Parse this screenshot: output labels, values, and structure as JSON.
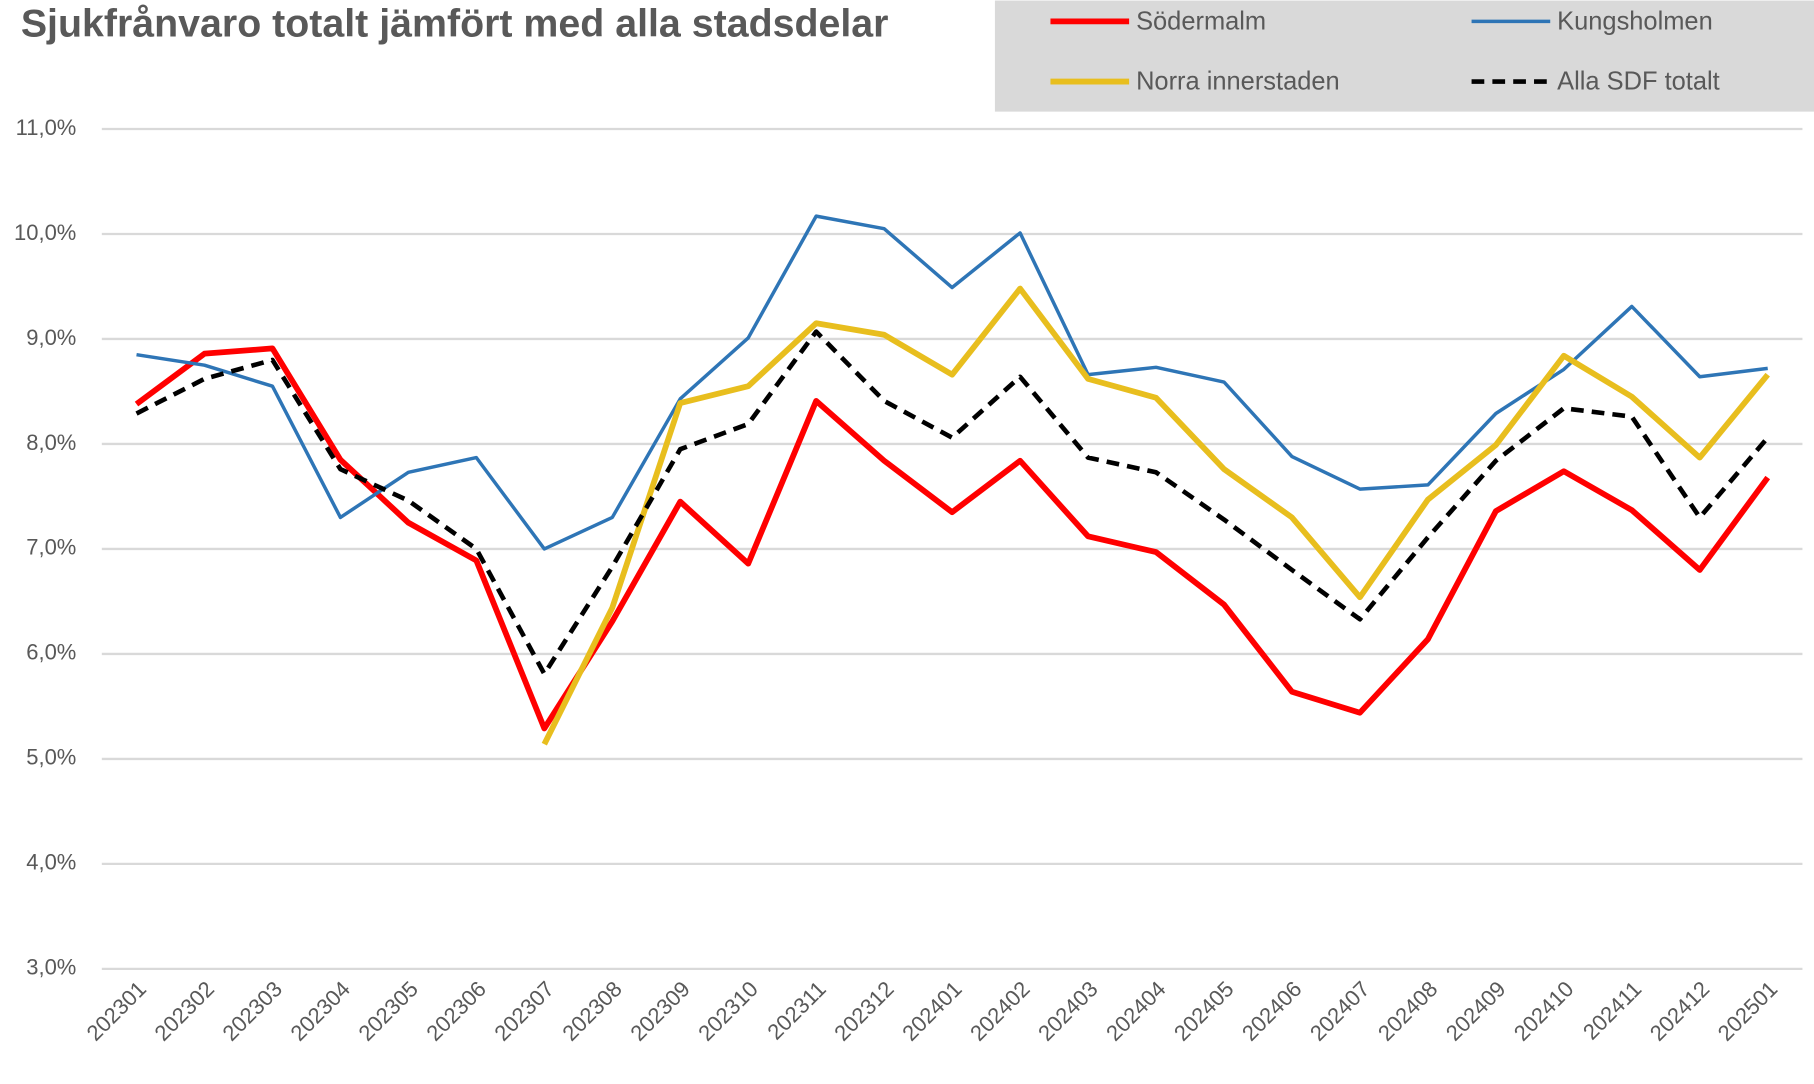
{
  "chart_data": {
    "type": "line",
    "title": "Sjukfrånvaro totalt jämfört med alla stadsdelar",
    "categories": [
      "202301",
      "202302",
      "202303",
      "202304",
      "202305",
      "202306",
      "202307",
      "202308",
      "202309",
      "202310",
      "202311",
      "202312",
      "202401",
      "202402",
      "202403",
      "202404",
      "202405",
      "202406",
      "202407",
      "202408",
      "202409",
      "202410",
      "202411",
      "202412",
      "202501"
    ],
    "series": [
      {
        "name": "Södermalm",
        "color": "#ff0000",
        "width": 5,
        "dash": false,
        "values": [
          8.38,
          8.86,
          8.91,
          7.85,
          7.25,
          6.89,
          5.29,
          6.31,
          7.45,
          6.86,
          8.41,
          7.84,
          7.35,
          7.84,
          7.12,
          6.97,
          6.47,
          5.64,
          5.44,
          6.14,
          7.36,
          7.74,
          7.37,
          6.8,
          7.68
        ]
      },
      {
        "name": "Kungsholmen",
        "color": "#2e75b6",
        "width": 3,
        "dash": false,
        "values": [
          8.85,
          8.75,
          8.55,
          7.3,
          7.73,
          7.87,
          7.0,
          7.3,
          8.43,
          9.01,
          10.17,
          10.05,
          9.49,
          10.01,
          8.66,
          8.73,
          8.59,
          7.88,
          7.57,
          7.61,
          8.29,
          8.71,
          9.31,
          8.64,
          8.72
        ]
      },
      {
        "name": "Norra innerstaden",
        "color": "#e8be1e",
        "width": 5,
        "dash": false,
        "values": [
          null,
          null,
          null,
          null,
          null,
          null,
          5.14,
          6.44,
          8.39,
          8.55,
          9.15,
          9.04,
          8.66,
          9.48,
          8.62,
          8.44,
          7.76,
          7.3,
          6.54,
          7.47,
          7.99,
          8.84,
          8.45,
          7.87,
          8.66
        ]
      },
      {
        "name": "Alla SDF totalt",
        "color": "#000000",
        "width": 4,
        "dash": true,
        "values": [
          8.29,
          8.62,
          8.8,
          7.76,
          7.46,
          7.0,
          5.81,
          6.83,
          7.95,
          8.19,
          9.07,
          8.41,
          8.06,
          8.64,
          7.87,
          7.73,
          7.28,
          6.8,
          6.33,
          7.11,
          7.84,
          8.34,
          8.26,
          7.3,
          8.06
        ]
      }
    ],
    "ylim": [
      3,
      11
    ],
    "yticks": [
      {
        "value": 3,
        "label": "3,0%"
      },
      {
        "value": 4,
        "label": "4,0%"
      },
      {
        "value": 5,
        "label": "5,0%"
      },
      {
        "value": 6,
        "label": "6,0%"
      },
      {
        "value": 7,
        "label": "7,0%"
      },
      {
        "value": 8,
        "label": "8,0%"
      },
      {
        "value": 9,
        "label": "9,0%"
      },
      {
        "value": 10,
        "label": "10,0%"
      },
      {
        "value": 11,
        "label": "11,0%"
      }
    ],
    "grid": true,
    "legend": "top-right"
  }
}
